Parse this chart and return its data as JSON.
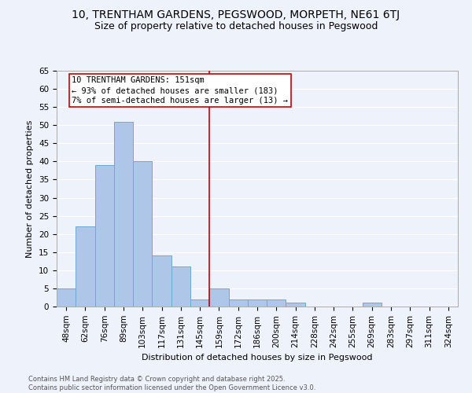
{
  "title1": "10, TRENTHAM GARDENS, PEGSWOOD, MORPETH, NE61 6TJ",
  "title2": "Size of property relative to detached houses in Pegswood",
  "xlabel": "Distribution of detached houses by size in Pegswood",
  "ylabel": "Number of detached properties",
  "footnote1": "Contains HM Land Registry data © Crown copyright and database right 2025.",
  "footnote2": "Contains public sector information licensed under the Open Government Licence v3.0.",
  "bar_labels": [
    "48sqm",
    "62sqm",
    "76sqm",
    "89sqm",
    "103sqm",
    "117sqm",
    "131sqm",
    "145sqm",
    "159sqm",
    "172sqm",
    "186sqm",
    "200sqm",
    "214sqm",
    "228sqm",
    "242sqm",
    "255sqm",
    "269sqm",
    "283sqm",
    "297sqm",
    "311sqm",
    "324sqm"
  ],
  "bar_values": [
    5,
    22,
    39,
    51,
    40,
    14,
    11,
    2,
    5,
    2,
    2,
    2,
    1,
    0,
    0,
    0,
    1,
    0,
    0,
    0,
    0
  ],
  "bar_color": "#aec6e8",
  "bar_edge_color": "#6aaad4",
  "vline_x": 7.5,
  "vline_color": "#cc0000",
  "annotation_text": "10 TRENTHAM GARDENS: 151sqm\n← 93% of detached houses are smaller (183)\n7% of semi-detached houses are larger (13) →",
  "annotation_box_color": "#cc0000",
  "ylim": [
    0,
    65
  ],
  "yticks": [
    0,
    5,
    10,
    15,
    20,
    25,
    30,
    35,
    40,
    45,
    50,
    55,
    60,
    65
  ],
  "background_color": "#eef2fb",
  "grid_color": "#ffffff",
  "title_fontsize": 10,
  "subtitle_fontsize": 9,
  "axis_label_fontsize": 8,
  "tick_fontsize": 7.5,
  "footnote_fontsize": 6,
  "annotation_fontsize": 7.5
}
